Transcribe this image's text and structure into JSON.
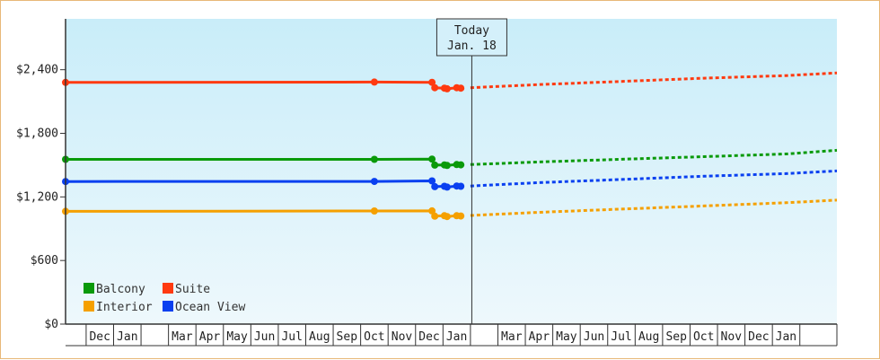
{
  "chart_data": {
    "type": "line",
    "title": "",
    "xlabel": "",
    "ylabel": "",
    "ylim": [
      0,
      2880
    ],
    "yticks": [
      {
        "value": 0,
        "label": "$0"
      },
      {
        "value": 600,
        "label": "$600"
      },
      {
        "value": 1200,
        "label": "$1,200"
      },
      {
        "value": 1800,
        "label": "$1,800"
      },
      {
        "value": 2400,
        "label": "$2,400"
      }
    ],
    "x_unit": "month index (0 = Oct of first year)",
    "xlim": [
      -2.25,
      25.85
    ],
    "x_month_labels": [
      {
        "x": -1,
        "label": "Dec"
      },
      {
        "x": 0,
        "label": "Jan"
      },
      {
        "x": 2,
        "label": "Mar"
      },
      {
        "x": 3,
        "label": "Apr"
      },
      {
        "x": 4,
        "label": "May"
      },
      {
        "x": 5,
        "label": "Jun"
      },
      {
        "x": 6,
        "label": "Jul"
      },
      {
        "x": 7,
        "label": "Aug"
      },
      {
        "x": 8,
        "label": "Sep"
      },
      {
        "x": 9,
        "label": "Oct"
      },
      {
        "x": 10,
        "label": "Nov"
      },
      {
        "x": 11,
        "label": "Dec"
      },
      {
        "x": 12,
        "label": "Jan"
      },
      {
        "x": 14,
        "label": "Mar"
      },
      {
        "x": 15,
        "label": "Apr"
      },
      {
        "x": 16,
        "label": "May"
      },
      {
        "x": 17,
        "label": "Jun"
      },
      {
        "x": 18,
        "label": "Jul"
      },
      {
        "x": 19,
        "label": "Aug"
      },
      {
        "x": 20,
        "label": "Sep"
      },
      {
        "x": 21,
        "label": "Oct"
      },
      {
        "x": 22,
        "label": "Nov"
      },
      {
        "x": 23,
        "label": "Dec"
      },
      {
        "x": 24,
        "label": "Jan"
      }
    ],
    "today": {
      "x": 12.55,
      "line1": "Today",
      "line2": "Jan. 18"
    },
    "grid": false,
    "legend_position": "bottom-left",
    "background_gradient": [
      "#c9edf9",
      "#eef8fc"
    ],
    "series": [
      {
        "name": "Balcony",
        "color": "#0a9a0a",
        "history": [
          [
            -2.25,
            1554
          ],
          [
            9.0,
            1554
          ],
          [
            11.1,
            1557
          ],
          [
            11.2,
            1500
          ],
          [
            11.55,
            1502
          ],
          [
            11.65,
            1497
          ],
          [
            12.0,
            1505
          ],
          [
            12.15,
            1503
          ]
        ],
        "forecast": [
          [
            12.5,
            1505
          ],
          [
            15,
            1530
          ],
          [
            18,
            1555
          ],
          [
            21,
            1580
          ],
          [
            24,
            1605
          ],
          [
            25.85,
            1640
          ]
        ]
      },
      {
        "name": "Suite",
        "color": "#ff3a10",
        "history": [
          [
            -2.25,
            2280
          ],
          [
            9.0,
            2284
          ],
          [
            11.1,
            2281
          ],
          [
            11.2,
            2230
          ],
          [
            11.55,
            2226
          ],
          [
            11.65,
            2220
          ],
          [
            12.0,
            2230
          ],
          [
            12.15,
            2226
          ]
        ],
        "forecast": [
          [
            12.5,
            2230
          ],
          [
            15,
            2260
          ],
          [
            18,
            2290
          ],
          [
            21,
            2320
          ],
          [
            24,
            2345
          ],
          [
            25.85,
            2370
          ]
        ]
      },
      {
        "name": "Interior",
        "color": "#f5a000",
        "history": [
          [
            -2.25,
            1064
          ],
          [
            9.0,
            1067
          ],
          [
            11.1,
            1068
          ],
          [
            11.2,
            1018
          ],
          [
            11.55,
            1022
          ],
          [
            11.65,
            1015
          ],
          [
            12.0,
            1022
          ],
          [
            12.15,
            1020
          ]
        ],
        "forecast": [
          [
            12.5,
            1025
          ],
          [
            15,
            1055
          ],
          [
            18,
            1085
          ],
          [
            21,
            1115
          ],
          [
            24,
            1145
          ],
          [
            25.85,
            1170
          ]
        ]
      },
      {
        "name": "Ocean View",
        "color": "#0a40f0",
        "history": [
          [
            -2.25,
            1345
          ],
          [
            9.0,
            1346
          ],
          [
            11.1,
            1351
          ],
          [
            11.2,
            1297
          ],
          [
            11.55,
            1300
          ],
          [
            11.65,
            1293
          ],
          [
            12.0,
            1303
          ],
          [
            12.15,
            1300
          ]
        ],
        "forecast": [
          [
            12.5,
            1303
          ],
          [
            15,
            1335
          ],
          [
            18,
            1365
          ],
          [
            21,
            1395
          ],
          [
            24,
            1420
          ],
          [
            25.85,
            1445
          ]
        ]
      }
    ],
    "legend": [
      {
        "series": "Balcony",
        "col": 0,
        "row": 0
      },
      {
        "series": "Suite",
        "col": 1,
        "row": 0
      },
      {
        "series": "Interior",
        "col": 0,
        "row": 1
      },
      {
        "series": "Ocean View",
        "col": 1,
        "row": 1
      }
    ]
  }
}
